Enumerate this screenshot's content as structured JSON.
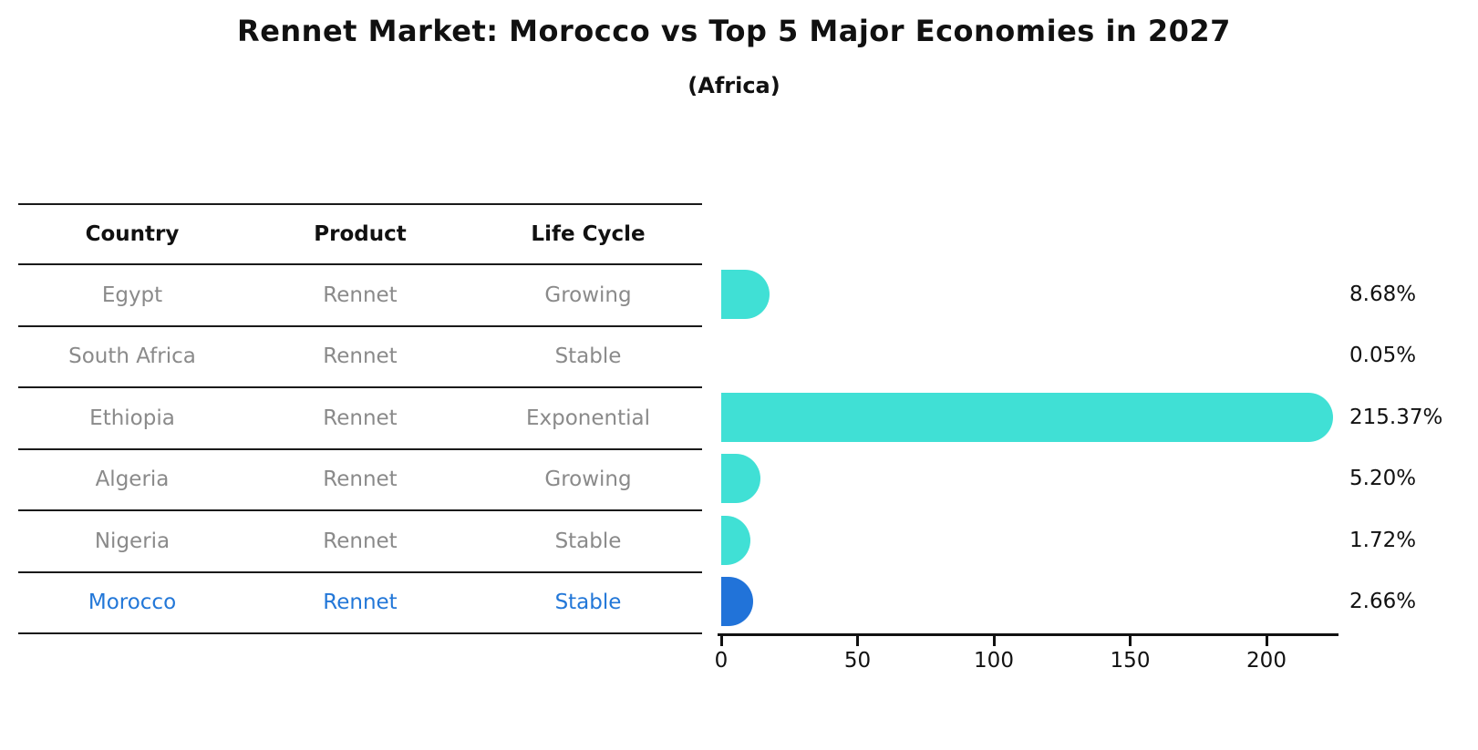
{
  "title": "Rennet Market: Morocco vs Top 5 Major Economies in 2027",
  "subtitle": "(Africa)",
  "table": {
    "headers": [
      "Country",
      "Product",
      "Life Cycle"
    ],
    "rows": [
      {
        "country": "Egypt",
        "product": "Rennet",
        "life_cycle": "Growing",
        "highlight": false
      },
      {
        "country": "South Africa",
        "product": "Rennet",
        "life_cycle": "Stable",
        "highlight": false
      },
      {
        "country": "Ethiopia",
        "product": "Rennet",
        "life_cycle": "Exponential",
        "highlight": false
      },
      {
        "country": "Algeria",
        "product": "Rennet",
        "life_cycle": "Growing",
        "highlight": false
      },
      {
        "country": "Nigeria",
        "product": "Rennet",
        "life_cycle": "Stable",
        "highlight": false
      },
      {
        "country": "Morocco",
        "product": "Rennet",
        "life_cycle": "Stable",
        "highlight": true
      }
    ]
  },
  "chart_data": {
    "type": "bar",
    "orientation": "horizontal",
    "title": "Rennet Market: Morocco vs Top 5 Major Economies in 2027",
    "subtitle": "(Africa)",
    "categories": [
      "Egypt",
      "South Africa",
      "Ethiopia",
      "Algeria",
      "Nigeria",
      "Morocco"
    ],
    "values": [
      8.68,
      0.05,
      215.37,
      5.2,
      1.72,
      2.66
    ],
    "value_labels": [
      "8.68%",
      "0.05%",
      "215.37%",
      "5.20%",
      "1.72%",
      "2.66%"
    ],
    "x_ticks": [
      0,
      50,
      100,
      150,
      200
    ],
    "xlim": [
      0,
      226
    ],
    "grid": false,
    "legend": false,
    "bar_color": "#40E0D5",
    "highlight_color": "#2173D9",
    "highlight_index": 5
  },
  "colors": {
    "accent_blue": "#2277d8",
    "bar_cyan": "#40E0D5",
    "bar_blue": "#2173D9",
    "table_text_gray": "#8a8a8a",
    "heading_black": "#111111"
  }
}
